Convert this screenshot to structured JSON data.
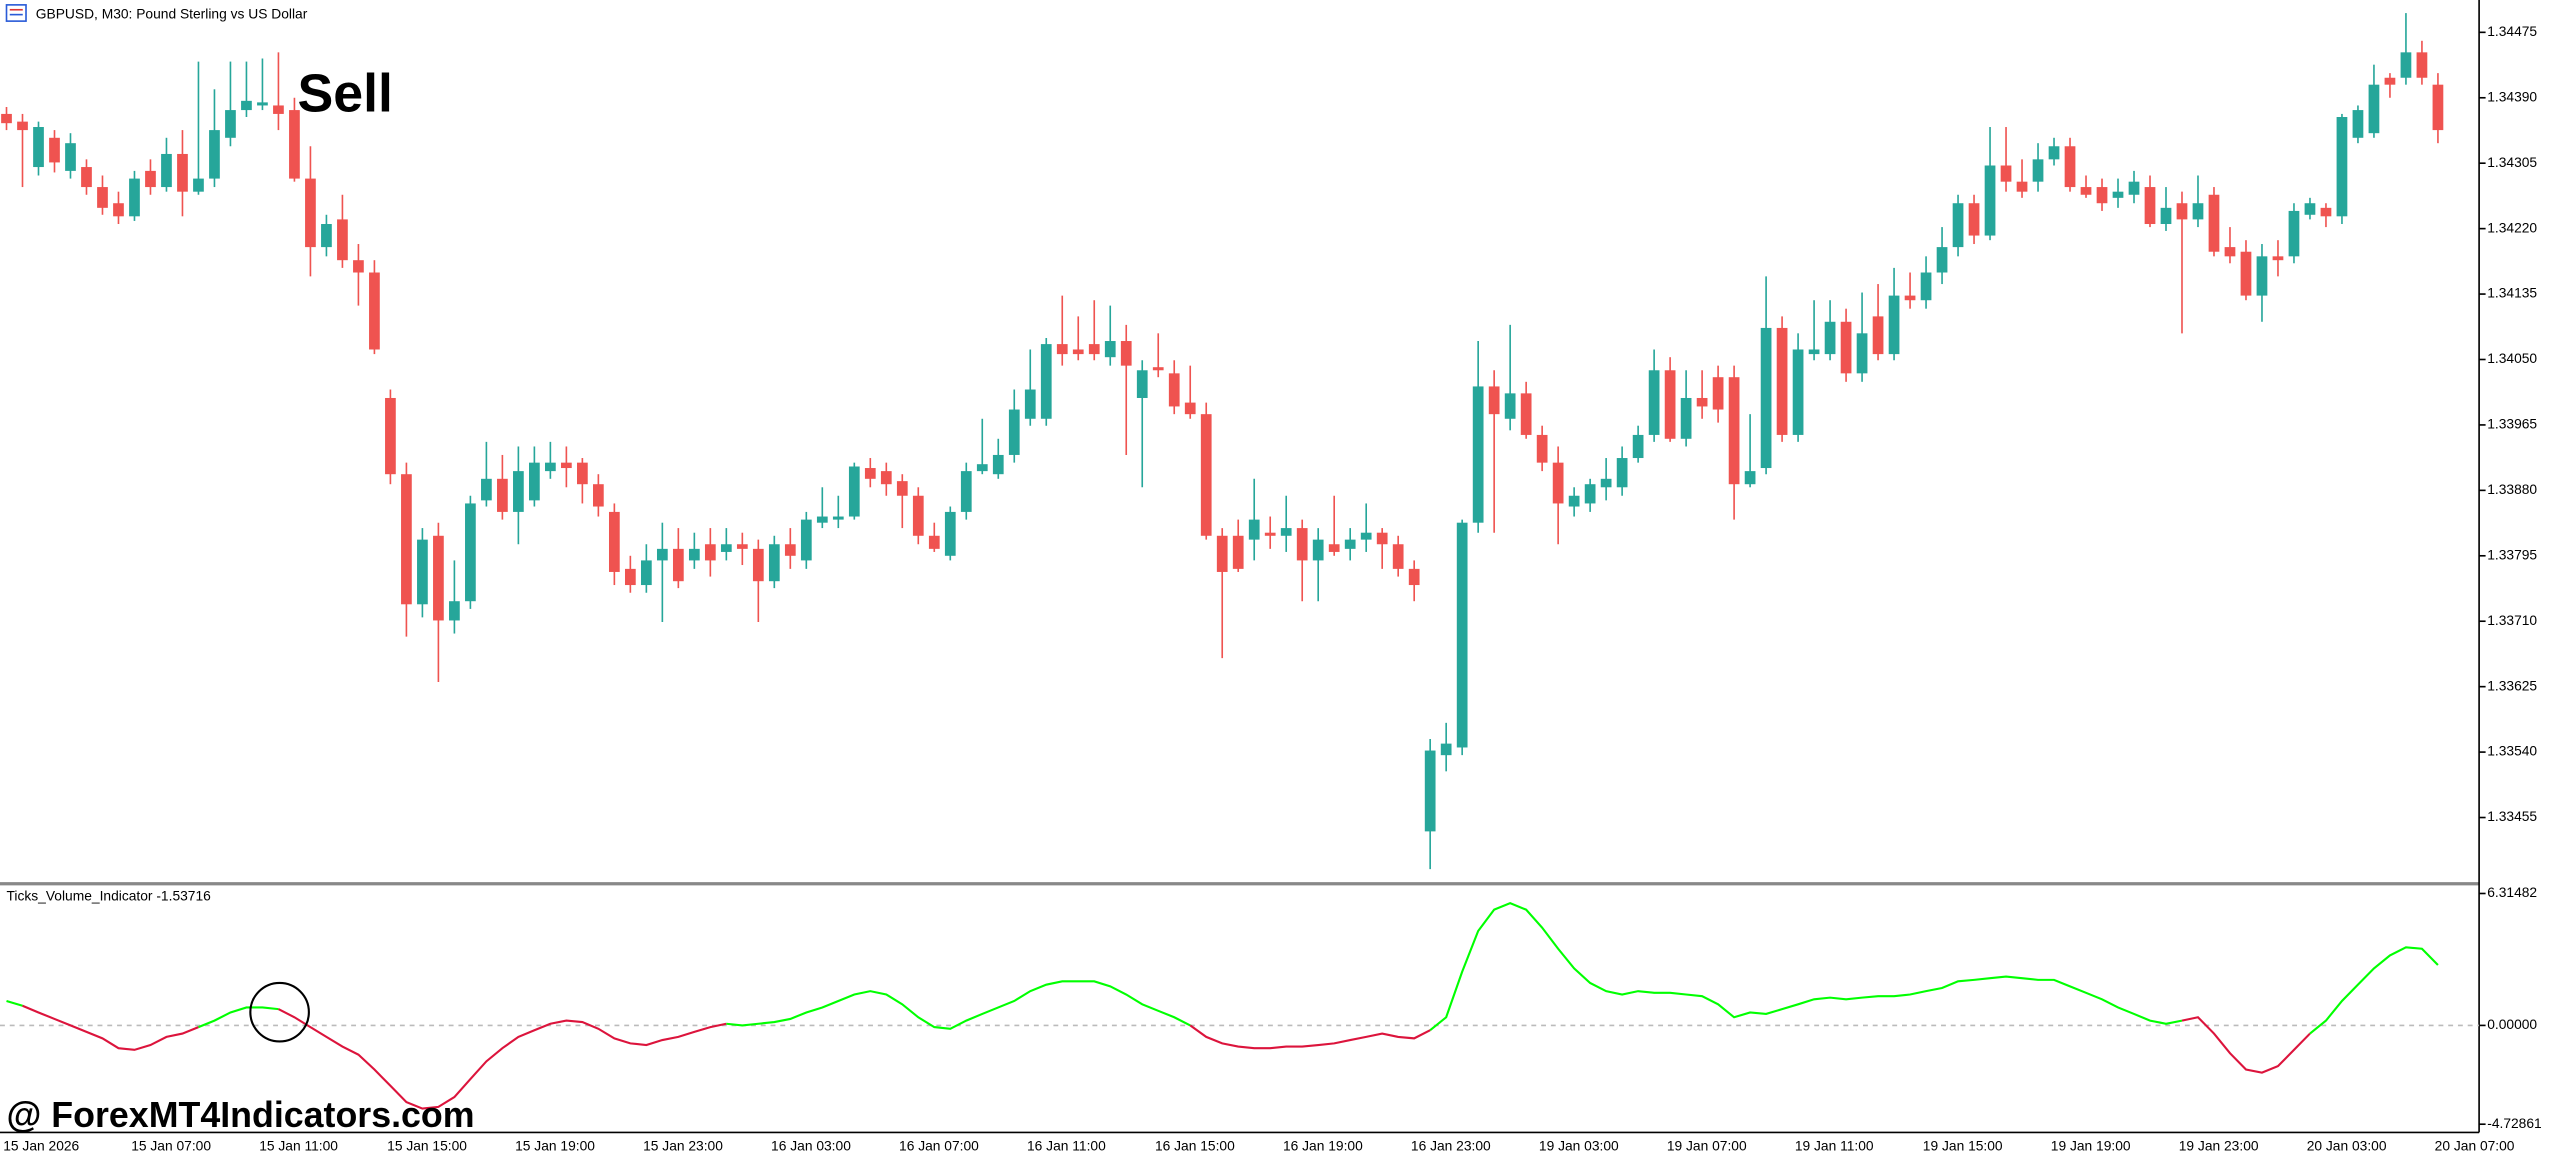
{
  "chart_data": [
    {
      "type": "candlestick",
      "title": "GBPUSD, M30:  Pound Sterling vs US Dollar",
      "annotation": "Sell",
      "up_color": "#26a69a",
      "down_color": "#ef5350",
      "categories": [
        "15 Jan 2026",
        null,
        null,
        null,
        null,
        null,
        null,
        null,
        "15 Jan 07:00",
        null,
        null,
        null,
        null,
        null,
        null,
        null,
        "15 Jan 11:00",
        null,
        null,
        null,
        null,
        null,
        null,
        null,
        "15 Jan 15:00",
        null,
        null,
        null,
        null,
        null,
        null,
        null,
        "15 Jan 19:00",
        null,
        null,
        null,
        null,
        null,
        null,
        null,
        "15 Jan 23:00",
        null,
        null,
        null,
        null,
        null,
        null,
        null,
        "16 Jan 03:00",
        null,
        null,
        null,
        null,
        null,
        null,
        null,
        "16 Jan 07:00",
        null,
        null,
        null,
        null,
        null,
        null,
        null,
        "16 Jan 11:00",
        null,
        null,
        null,
        null,
        null,
        null,
        null,
        "16 Jan 15:00",
        null,
        null,
        null,
        null,
        null,
        null,
        null,
        "16 Jan 19:00",
        null,
        null,
        null,
        null,
        null,
        null,
        null,
        "16 Jan 23:00",
        null,
        null,
        null,
        null,
        null,
        null,
        null,
        "19 Jan 03:00",
        null,
        null,
        null,
        null,
        null,
        null,
        null,
        "19 Jan 07:00",
        null,
        null,
        null,
        null,
        null,
        null,
        null,
        "19 Jan 11:00",
        null,
        null,
        null,
        null,
        null,
        null,
        null,
        "19 Jan 15:00",
        null,
        null,
        null,
        null,
        null,
        null,
        null,
        "19 Jan 19:00",
        null,
        null,
        null,
        null,
        null,
        null,
        null,
        "19 Jan 23:00",
        null,
        null,
        null,
        null,
        null,
        null,
        null,
        "20 Jan 03:00",
        null,
        null,
        null,
        null,
        null,
        null,
        null,
        "20 Jan 07:00"
      ],
      "open": [
        1.34369,
        1.34359,
        1.343,
        1.34338,
        1.34295,
        1.343,
        1.34274,
        1.34253,
        1.34236,
        1.34295,
        1.34274,
        1.34317,
        1.34268,
        1.34285,
        1.34338,
        1.34374,
        1.3438,
        1.3438,
        1.34374,
        1.34285,
        1.34196,
        1.34232,
        1.34179,
        1.34163,
        1.34,
        1.33901,
        1.33732,
        1.33821,
        1.33711,
        1.33736,
        1.33867,
        1.33895,
        1.33852,
        1.33867,
        1.33905,
        1.33916,
        1.33916,
        1.33888,
        1.33852,
        1.33778,
        1.33757,
        1.33789,
        1.33804,
        1.33789,
        1.3381,
        1.338,
        1.3381,
        1.33804,
        1.33762,
        1.3381,
        1.33789,
        1.33838,
        1.33842,
        1.33846,
        1.33909,
        1.33905,
        1.33892,
        1.33873,
        1.33821,
        1.33795,
        1.33852,
        1.33905,
        1.33901,
        1.33926,
        1.33973,
        1.33973,
        1.3407,
        1.34063,
        1.3407,
        1.34053,
        1.34074,
        1.34,
        1.3404,
        1.34032,
        1.33994,
        1.33979,
        1.33821,
        1.33821,
        1.33816,
        1.33825,
        1.33821,
        1.33831,
        1.33789,
        1.3381,
        1.33804,
        1.33816,
        1.33825,
        1.3381,
        1.33778,
        1.33437,
        1.33536,
        1.33546,
        1.33838,
        1.34015,
        1.33973,
        1.34006,
        1.33952,
        1.33916,
        1.33859,
        1.33863,
        1.33884,
        1.33884,
        1.33922,
        1.33952,
        1.34036,
        1.33947,
        1.34,
        1.34027,
        1.34027,
        1.33888,
        1.33909,
        1.34091,
        1.33952,
        1.34057,
        1.34057,
        1.34099,
        1.34032,
        1.34106,
        1.34057,
        1.34133,
        1.34127,
        1.34163,
        1.34196,
        1.34253,
        1.34211,
        1.34302,
        1.34281,
        1.34281,
        1.3431,
        1.34327,
        1.34274,
        1.34274,
        1.3426,
        1.34264,
        1.34274,
        1.34226,
        1.34253,
        1.34232,
        1.34264,
        1.34196,
        1.3419,
        1.34133,
        1.34184,
        1.34184,
        1.34238,
        1.34247,
        1.34236,
        1.34338,
        1.34344,
        1.34416,
        1.34416,
        1.34449,
        1.34407
      ],
      "high": [
        1.34378,
        1.34369,
        1.34359,
        1.34348,
        1.34344,
        1.3431,
        1.34289,
        1.34268,
        1.34295,
        1.3431,
        1.34338,
        1.34348,
        1.34437,
        1.34401,
        1.34437,
        1.34437,
        1.34441,
        1.34449,
        1.3439,
        1.34327,
        1.34238,
        1.34264,
        1.342,
        1.34179,
        1.34011,
        1.33916,
        1.33831,
        1.33838,
        1.33789,
        1.33873,
        1.33943,
        1.33926,
        1.33937,
        1.33937,
        1.33943,
        1.33937,
        1.33922,
        1.33901,
        1.33863,
        1.33795,
        1.3381,
        1.33838,
        1.33831,
        1.33825,
        1.33831,
        1.33831,
        1.33825,
        1.33816,
        1.33821,
        1.33831,
        1.33852,
        1.33884,
        1.33873,
        1.33916,
        1.33922,
        1.33916,
        1.33901,
        1.33884,
        1.33838,
        1.33859,
        1.33916,
        1.33973,
        1.33947,
        1.34011,
        1.34063,
        1.34078,
        1.34133,
        1.34106,
        1.34127,
        1.3412,
        1.34095,
        1.34049,
        1.34084,
        1.34049,
        1.34042,
        1.33994,
        1.33831,
        1.33842,
        1.33895,
        1.33846,
        1.33873,
        1.33842,
        1.33831,
        1.33873,
        1.33831,
        1.33863,
        1.33831,
        1.33821,
        1.33789,
        1.33557,
        1.33578,
        1.33842,
        1.34074,
        1.34036,
        1.34095,
        1.34021,
        1.33964,
        1.33937,
        1.33884,
        1.33895,
        1.33922,
        1.33937,
        1.33964,
        1.34063,
        1.34053,
        1.34036,
        1.34036,
        1.34042,
        1.34042,
        1.33979,
        1.34158,
        1.34106,
        1.34084,
        1.34127,
        1.34127,
        1.34116,
        1.34137,
        1.34148,
        1.34169,
        1.34163,
        1.34184,
        1.34222,
        1.34264,
        1.34264,
        1.34352,
        1.34352,
        1.3431,
        1.34331,
        1.34338,
        1.34338,
        1.34289,
        1.34285,
        1.34285,
        1.34295,
        1.34289,
        1.34274,
        1.34268,
        1.34289,
        1.34274,
        1.34222,
        1.34205,
        1.342,
        1.34205,
        1.34253,
        1.3426,
        1.34253,
        1.34369,
        1.3438,
        1.34433,
        1.34422,
        1.345,
        1.34464,
        1.34422
      ],
      "low": [
        1.34348,
        1.34274,
        1.34289,
        1.34293,
        1.34285,
        1.34264,
        1.34238,
        1.34226,
        1.3423,
        1.34264,
        1.34268,
        1.34236,
        1.34264,
        1.34274,
        1.34327,
        1.34365,
        1.34374,
        1.34348,
        1.34281,
        1.34158,
        1.34184,
        1.34169,
        1.3412,
        1.34057,
        1.33888,
        1.3369,
        1.33715,
        1.33631,
        1.33694,
        1.33726,
        1.33859,
        1.33842,
        1.3381,
        1.33859,
        1.33895,
        1.33884,
        1.33863,
        1.33846,
        1.33757,
        1.33747,
        1.33747,
        1.33709,
        1.33753,
        1.33778,
        1.33768,
        1.33789,
        1.33783,
        1.33709,
        1.33753,
        1.33778,
        1.33778,
        1.33831,
        1.33831,
        1.33842,
        1.33884,
        1.33873,
        1.33831,
        1.3381,
        1.338,
        1.33789,
        1.33842,
        1.33901,
        1.33895,
        1.33916,
        1.33964,
        1.33964,
        1.34042,
        1.34049,
        1.34049,
        1.34042,
        1.33926,
        1.33884,
        1.34027,
        1.33979,
        1.33973,
        1.33816,
        1.33662,
        1.33774,
        1.33789,
        1.33804,
        1.338,
        1.33736,
        1.33736,
        1.33795,
        1.33789,
        1.338,
        1.33778,
        1.33768,
        1.33736,
        1.33388,
        1.33515,
        1.33536,
        1.33825,
        1.33825,
        1.33958,
        1.33947,
        1.33905,
        1.3381,
        1.33846,
        1.33852,
        1.33867,
        1.33873,
        1.33916,
        1.33943,
        1.33943,
        1.33937,
        1.33973,
        1.33968,
        1.33842,
        1.33884,
        1.33901,
        1.33943,
        1.33943,
        1.34049,
        1.34049,
        1.34021,
        1.34021,
        1.34049,
        1.34049,
        1.34116,
        1.34116,
        1.34148,
        1.34184,
        1.342,
        1.34205,
        1.34268,
        1.3426,
        1.34268,
        1.34302,
        1.34268,
        1.3426,
        1.34243,
        1.34247,
        1.34253,
        1.34222,
        1.34217,
        1.34084,
        1.34222,
        1.34184,
        1.34175,
        1.34127,
        1.34099,
        1.34158,
        1.34175,
        1.34232,
        1.34222,
        1.34226,
        1.34331,
        1.34338,
        1.3439,
        1.34407,
        1.34407,
        1.34331
      ],
      "close": [
        1.34357,
        1.34348,
        1.34352,
        1.34306,
        1.34331,
        1.34274,
        1.34247,
        1.34236,
        1.34285,
        1.34274,
        1.34317,
        1.34268,
        1.34285,
        1.34348,
        1.34374,
        1.34386,
        1.34384,
        1.34369,
        1.34285,
        1.34196,
        1.34226,
        1.34179,
        1.34163,
        1.34063,
        1.33901,
        1.33732,
        1.33816,
        1.33711,
        1.33736,
        1.33863,
        1.33895,
        1.33852,
        1.33905,
        1.33916,
        1.33916,
        1.33909,
        1.33888,
        1.33859,
        1.33774,
        1.33757,
        1.33789,
        1.33804,
        1.33762,
        1.33804,
        1.33789,
        1.3381,
        1.33804,
        1.33762,
        1.3381,
        1.33795,
        1.33842,
        1.33846,
        1.33846,
        1.33911,
        1.33895,
        1.33888,
        1.33873,
        1.33821,
        1.33804,
        1.33852,
        1.33905,
        1.33914,
        1.33926,
        1.33985,
        1.34011,
        1.3407,
        1.34057,
        1.34057,
        1.34057,
        1.34074,
        1.34042,
        1.34036,
        1.34036,
        1.33989,
        1.33979,
        1.33821,
        1.33774,
        1.33778,
        1.33842,
        1.33821,
        1.33831,
        1.33789,
        1.33816,
        1.338,
        1.33816,
        1.33825,
        1.3381,
        1.33778,
        1.33757,
        1.33542,
        1.33551,
        1.33838,
        1.34015,
        1.33979,
        1.34006,
        1.33952,
        1.33916,
        1.33863,
        1.33873,
        1.33888,
        1.33895,
        1.33922,
        1.33952,
        1.34036,
        1.33947,
        1.34,
        1.33989,
        1.33985,
        1.33888,
        1.33905,
        1.34091,
        1.33952,
        1.34063,
        1.34063,
        1.34099,
        1.34032,
        1.34084,
        1.34057,
        1.34133,
        1.34127,
        1.34163,
        1.34196,
        1.34253,
        1.34211,
        1.34302,
        1.34281,
        1.34268,
        1.3431,
        1.34327,
        1.34274,
        1.34264,
        1.34253,
        1.34268,
        1.34281,
        1.34226,
        1.34247,
        1.34232,
        1.34253,
        1.3419,
        1.34184,
        1.34133,
        1.34184,
        1.34179,
        1.34243,
        1.34253,
        1.34236,
        1.34365,
        1.34374,
        1.34407,
        1.34407,
        1.34449,
        1.34416,
        1.34348
      ],
      "ylim": [
        1.33371,
        1.34517
      ],
      "yticks": [
        1.34475,
        {
          "value": 1.3439,
          "label": "1.34390"
        },
        1.34305,
        {
          "value": 1.3422,
          "label": "1.34220"
        },
        1.34135,
        {
          "value": 1.3405,
          "label": "1.34050"
        },
        1.33965,
        {
          "value": 1.3388,
          "label": "1.33880"
        },
        1.33795,
        {
          "value": 1.3371,
          "label": "1.33710"
        },
        1.33625,
        {
          "value": 1.3354,
          "label": "1.33540"
        },
        1.33455
      ]
    },
    {
      "type": "line",
      "title": "Ticks_Volume_Indicator -1.53716",
      "values": [
        1.17,
        0.94,
        0.62,
        0.31,
        0,
        -0.31,
        -0.62,
        -1.09,
        -1.17,
        -0.94,
        -0.55,
        -0.39,
        -0.08,
        0.23,
        0.62,
        0.86,
        0.86,
        0.78,
        0.39,
        -0.08,
        -0.55,
        -1.01,
        -1.4,
        -2.11,
        -2.89,
        -3.67,
        -3.98,
        -3.9,
        -3.43,
        -2.57,
        -1.72,
        -1.09,
        -0.55,
        -0.23,
        0.08,
        0.23,
        0.16,
        -0.16,
        -0.62,
        -0.86,
        -0.94,
        -0.7,
        -0.55,
        -0.31,
        -0.08,
        0.08,
        0,
        0.08,
        0.16,
        0.31,
        0.62,
        0.86,
        1.17,
        1.48,
        1.64,
        1.48,
        1.01,
        0.39,
        -0.08,
        -0.16,
        0.23,
        0.55,
        0.86,
        1.17,
        1.64,
        1.95,
        2.11,
        2.11,
        2.11,
        1.87,
        1.48,
        1.01,
        0.7,
        0.39,
        0,
        -0.55,
        -0.86,
        -1.01,
        -1.09,
        -1.09,
        -1.01,
        -1.01,
        -0.94,
        -0.86,
        -0.7,
        -0.55,
        -0.39,
        -0.55,
        -0.62,
        -0.23,
        0.39,
        2.57,
        4.52,
        5.54,
        5.85,
        5.54,
        4.68,
        3.67,
        2.73,
        2.03,
        1.64,
        1.48,
        1.64,
        1.56,
        1.56,
        1.48,
        1.4,
        1.01,
        0.39,
        0.62,
        0.55,
        0.78,
        1.01,
        1.25,
        1.33,
        1.25,
        1.33,
        1.4,
        1.4,
        1.48,
        1.64,
        1.79,
        2.11,
        2.18,
        2.26,
        2.34,
        2.26,
        2.18,
        2.18,
        1.87,
        1.56,
        1.25,
        0.86,
        0.55,
        0.23,
        0.08,
        0.23,
        0.39,
        -0.39,
        -1.33,
        -2.11,
        -2.26,
        -1.95,
        -1.17,
        -0.39,
        0.23,
        1.17,
        1.95,
        2.73,
        3.35,
        3.74,
        3.67,
        2.89
      ],
      "colors": [
        "lime",
        "lime",
        "crimson",
        "crimson",
        "crimson",
        "crimson",
        "crimson",
        "crimson",
        "crimson",
        "crimson",
        "crimson",
        "crimson",
        "crimson",
        "lime",
        "lime",
        "lime",
        "lime",
        "lime",
        "crimson",
        "crimson",
        "crimson",
        "crimson",
        "crimson",
        "crimson",
        "crimson",
        "crimson",
        "crimson",
        "crimson",
        "crimson",
        "crimson",
        "crimson",
        "crimson",
        "crimson",
        "crimson",
        "crimson",
        "crimson",
        "crimson",
        "crimson",
        "crimson",
        "crimson",
        "crimson",
        "crimson",
        "crimson",
        "crimson",
        "crimson",
        "crimson",
        "lime",
        "lime",
        "lime",
        "lime",
        "lime",
        "lime",
        "lime",
        "lime",
        "lime",
        "lime",
        "lime",
        "lime",
        "lime",
        "lime",
        "lime",
        "lime",
        "lime",
        "lime",
        "lime",
        "lime",
        "lime",
        "lime",
        "lime",
        "lime",
        "lime",
        "lime",
        "lime",
        "lime",
        "lime",
        "crimson",
        "crimson",
        "crimson",
        "crimson",
        "crimson",
        "crimson",
        "crimson",
        "crimson",
        "crimson",
        "crimson",
        "crimson",
        "crimson",
        "crimson",
        "crimson",
        "crimson",
        "lime",
        "lime",
        "lime",
        "lime",
        "lime",
        "lime",
        "lime",
        "lime",
        "lime",
        "lime",
        "lime",
        "lime",
        "lime",
        "lime",
        "lime",
        "lime",
        "lime",
        "lime",
        "lime",
        "lime",
        "lime",
        "lime",
        "lime",
        "lime",
        "lime",
        "lime",
        "lime",
        "lime",
        "lime",
        "lime",
        "lime",
        "lime",
        "lime",
        "lime",
        "lime",
        "lime",
        "lime",
        "lime",
        "lime",
        "lime",
        "lime",
        "lime",
        "lime",
        "lime",
        "lime",
        "lime",
        "lime",
        "crimson",
        "crimson",
        "crimson",
        "crimson",
        "crimson",
        "crimson",
        "crimson",
        "crimson",
        "lime",
        "lime",
        "lime",
        "lime",
        "lime",
        "lime",
        "lime",
        "lime"
      ],
      "ylim": [
        -5.12,
        6.7
      ],
      "yticks": [
        6.31482,
        {
          "value": 0,
          "label": "0.00000"
        },
        -4.72861
      ],
      "zero_line": true
    }
  ],
  "watermark": "@ ForexMT4Indicators.com"
}
